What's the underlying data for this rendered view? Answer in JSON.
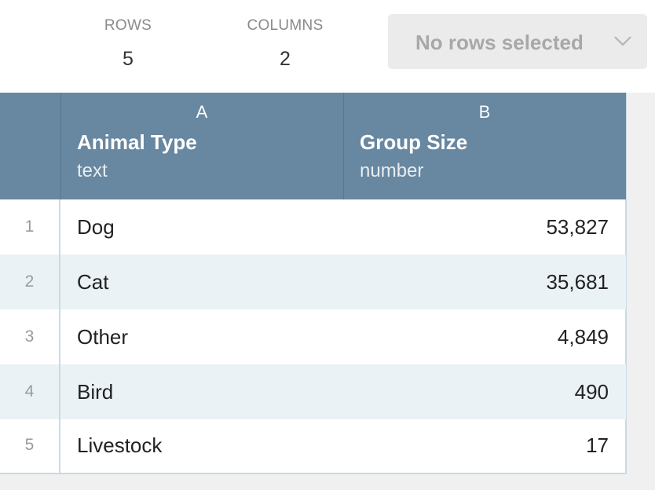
{
  "summary": {
    "rows_label": "ROWS",
    "rows_value": "5",
    "columns_label": "COLUMNS",
    "columns_value": "2"
  },
  "selection": {
    "label": "No rows selected",
    "icon": "chevron-down-icon"
  },
  "columns": [
    {
      "letter": "A",
      "name": "Animal Type",
      "type": "text"
    },
    {
      "letter": "B",
      "name": "Group Size",
      "type": "number"
    }
  ],
  "rows": [
    {
      "index": "1",
      "animal": "Dog",
      "size": "53,827"
    },
    {
      "index": "2",
      "animal": "Cat",
      "size": "35,681"
    },
    {
      "index": "3",
      "animal": "Other",
      "size": "4,849"
    },
    {
      "index": "4",
      "animal": "Bird",
      "size": "490"
    },
    {
      "index": "5",
      "animal": "Livestock",
      "size": "17"
    }
  ]
}
